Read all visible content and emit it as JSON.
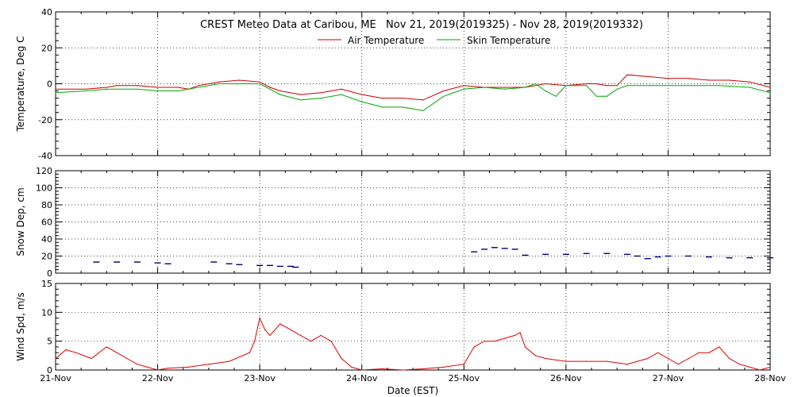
{
  "title": "CREST Meteo Data at Caribou, ME   Nov 21, 2019(2019325) - Nov 28, 2019(2019332)",
  "xlabel": "Date (EST)",
  "colors": {
    "air": "#cc0000",
    "skin": "#00aa00",
    "snow": "#000080",
    "wind": "#dd0000"
  },
  "chart_data": [
    {
      "type": "line",
      "ylabel": "Temperature, Deg C",
      "ylim": [
        -40,
        40
      ],
      "yticks": [
        "-40",
        "-20",
        "0",
        "20",
        "40"
      ],
      "xlim": [
        0,
        7
      ],
      "x_tick_labels": [
        "21-Nov",
        "22-Nov",
        "23-Nov",
        "24-Nov",
        "25-Nov",
        "26-Nov",
        "27-Nov",
        "28-Nov"
      ],
      "grid": true,
      "legend_position": "top-center",
      "series": [
        {
          "name": "Air Temperature",
          "x": [
            0,
            0.3,
            0.5,
            0.6,
            0.8,
            1.0,
            1.2,
            1.3,
            1.4,
            1.6,
            1.8,
            2.0,
            2.1,
            2.2,
            2.4,
            2.6,
            2.8,
            3.0,
            3.2,
            3.4,
            3.6,
            3.8,
            4.0,
            4.2,
            4.4,
            4.6,
            4.8,
            5.0,
            5.2,
            5.3,
            5.4,
            5.5,
            5.6,
            5.8,
            6.0,
            6.2,
            6.4,
            6.6,
            6.8,
            7.0
          ],
          "values": [
            -3,
            -3,
            -2,
            -1,
            -1,
            -2,
            -2,
            -3,
            -1,
            1,
            2,
            1,
            -2,
            -4,
            -6,
            -5,
            -3,
            -6,
            -8,
            -8,
            -9,
            -4,
            -1,
            -2,
            -2,
            -2,
            0,
            -1,
            0,
            0,
            -1,
            -1,
            5,
            4,
            3,
            3,
            2,
            2,
            1,
            -2
          ]
        },
        {
          "name": "Skin Temperature",
          "x": [
            0,
            0.3,
            0.5,
            0.8,
            1.0,
            1.2,
            1.3,
            1.6,
            1.8,
            2.0,
            2.1,
            2.2,
            2.4,
            2.6,
            2.8,
            3.0,
            3.2,
            3.4,
            3.6,
            3.8,
            4.0,
            4.2,
            4.4,
            4.6,
            4.7,
            4.8,
            4.9,
            5.0,
            5.1,
            5.2,
            5.3,
            5.4,
            5.5,
            5.6,
            6.0,
            6.5,
            6.8,
            7.0
          ],
          "values": [
            -5,
            -4,
            -3,
            -3,
            -4,
            -4,
            -3,
            0,
            0,
            0,
            -3,
            -6,
            -9,
            -8,
            -6,
            -10,
            -13,
            -13,
            -15,
            -7,
            -3,
            -2,
            -3,
            -2,
            0,
            -4,
            -7,
            -1,
            -1,
            -1,
            -7,
            -7,
            -3,
            -1,
            -1,
            -1,
            -2,
            -5
          ]
        }
      ]
    },
    {
      "type": "scatter",
      "ylabel": "Snow Dep, cm",
      "ylim": [
        0,
        120
      ],
      "yticks": [
        "0",
        "20",
        "40",
        "60",
        "80",
        "100",
        "120"
      ],
      "grid": true,
      "series": [
        {
          "name": "",
          "x": [
            0.4,
            0.6,
            0.8,
            1.0,
            1.1,
            1.55,
            1.7,
            1.8,
            2.0,
            2.1,
            2.2,
            2.3,
            2.35,
            4.1,
            4.2,
            4.3,
            4.4,
            4.5,
            4.6,
            4.8,
            5.0,
            5.2,
            5.4,
            5.6,
            5.7,
            5.8,
            5.9,
            6.0,
            6.2,
            6.4,
            6.6,
            6.8,
            7.0
          ],
          "values": [
            13,
            13,
            13,
            12,
            11,
            13,
            11,
            10,
            9,
            9,
            8,
            8,
            7,
            25,
            28,
            30,
            29,
            28,
            21,
            22,
            22,
            23,
            23,
            22,
            20,
            17,
            19,
            20,
            20,
            19,
            18,
            18,
            18
          ]
        }
      ]
    },
    {
      "type": "line",
      "ylabel": "Wind Spd, m/s",
      "ylim": [
        0,
        15
      ],
      "yticks": [
        "0",
        "5",
        "10",
        "15"
      ],
      "grid": true,
      "series": [
        {
          "name": "",
          "x": [
            0,
            0.1,
            0.2,
            0.35,
            0.5,
            0.6,
            0.7,
            0.8,
            0.9,
            1.0,
            1.1,
            1.3,
            1.5,
            1.7,
            1.9,
            1.95,
            2.0,
            2.05,
            2.1,
            2.2,
            2.3,
            2.4,
            2.5,
            2.6,
            2.7,
            2.8,
            2.9,
            3.0,
            3.2,
            3.4,
            3.6,
            3.8,
            4.0,
            4.1,
            4.2,
            4.3,
            4.4,
            4.5,
            4.55,
            4.6,
            4.7,
            4.8,
            5.0,
            5.2,
            5.4,
            5.6,
            5.8,
            5.9,
            6.0,
            6.1,
            6.2,
            6.3,
            6.4,
            6.5,
            6.55,
            6.6,
            6.7,
            6.8,
            6.9,
            7.0
          ],
          "values": [
            2,
            3.5,
            3,
            2,
            4,
            3,
            2,
            1,
            0.5,
            0,
            0.3,
            0.5,
            1,
            1.5,
            3,
            5,
            9,
            7,
            6,
            8,
            7,
            6,
            5,
            6,
            5,
            2,
            0.5,
            0,
            0.2,
            0,
            0.2,
            0.5,
            1,
            4,
            5,
            5,
            5.5,
            6,
            6.5,
            4,
            2.5,
            2,
            1.5,
            1.5,
            1.5,
            1,
            2,
            3,
            2,
            1,
            2,
            3,
            3,
            4,
            3,
            2,
            1,
            0.5,
            0,
            0.5
          ]
        }
      ]
    }
  ]
}
